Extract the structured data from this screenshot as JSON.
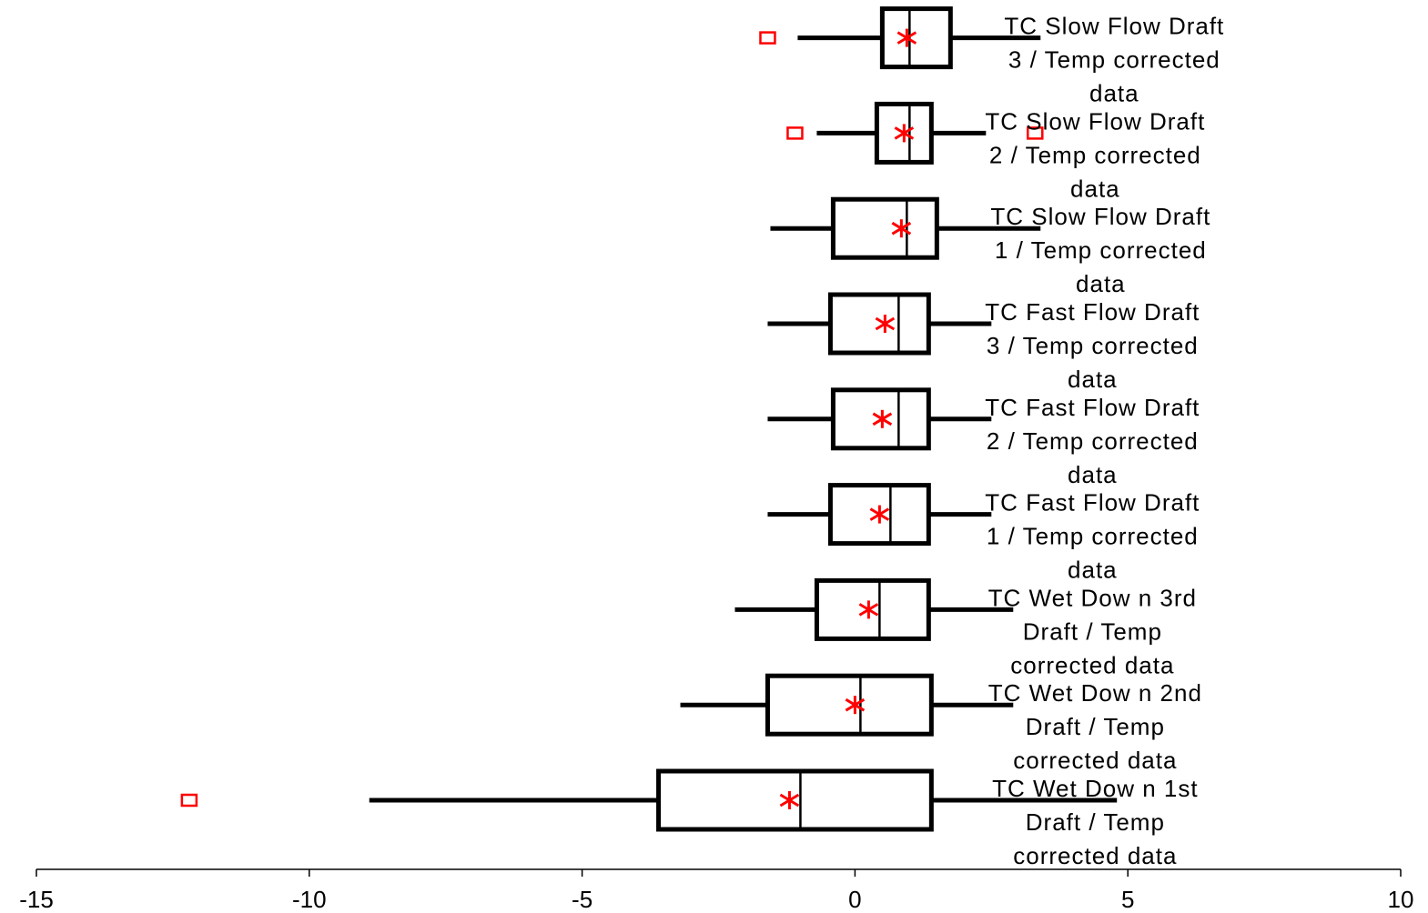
{
  "chart_data": {
    "type": "boxplot",
    "orientation": "horizontal",
    "title": "",
    "xlabel": "",
    "ylabel": "",
    "xlim": [
      -15,
      10
    ],
    "xticks": [
      -15,
      -10,
      -5,
      0,
      5,
      10
    ],
    "xtick_labels": [
      "-15",
      "-10",
      "-5",
      "0",
      "5",
      "10"
    ],
    "grid": false,
    "colors": {
      "box": "#000000",
      "mean": "#ff0000",
      "outlier": "#ff0000"
    },
    "categories": [
      {
        "label_lines": [
          "TC Wet Dow n 1st",
          "Draft / Temp",
          "corrected data"
        ],
        "whisker_low": -8.9,
        "q1": -3.6,
        "median": -1.0,
        "q3": 1.4,
        "whisker_high": 4.8,
        "mean": -1.2,
        "outliers": [
          -12.2
        ]
      },
      {
        "label_lines": [
          "TC Wet Dow n 2nd",
          "Draft / Temp",
          "corrected data"
        ],
        "whisker_low": -3.2,
        "q1": -1.6,
        "median": 0.1,
        "q3": 1.4,
        "whisker_high": 2.9,
        "mean": 0.0,
        "outliers": []
      },
      {
        "label_lines": [
          "TC Wet Dow n 3rd",
          "Draft / Temp",
          "corrected data"
        ],
        "whisker_low": -2.2,
        "q1": -0.7,
        "median": 0.45,
        "q3": 1.35,
        "whisker_high": 2.9,
        "mean": 0.25,
        "outliers": []
      },
      {
        "label_lines": [
          "TC Fast Flow  Draft",
          "1 / Temp corrected",
          "data"
        ],
        "whisker_low": -1.6,
        "q1": -0.45,
        "median": 0.65,
        "q3": 1.35,
        "whisker_high": 2.5,
        "mean": 0.45,
        "outliers": []
      },
      {
        "label_lines": [
          "TC Fast Flow  Draft",
          "2 / Temp corrected",
          "data"
        ],
        "whisker_low": -1.6,
        "q1": -0.4,
        "median": 0.8,
        "q3": 1.35,
        "whisker_high": 2.5,
        "mean": 0.5,
        "outliers": []
      },
      {
        "label_lines": [
          "TC Fast Flow  Draft",
          "3 / Temp corrected",
          "data"
        ],
        "whisker_low": -1.6,
        "q1": -0.45,
        "median": 0.8,
        "q3": 1.35,
        "whisker_high": 2.5,
        "mean": 0.55,
        "outliers": []
      },
      {
        "label_lines": [
          "TC Slow  Flow  Draft",
          "1 / Temp corrected",
          "data"
        ],
        "whisker_low": -1.55,
        "q1": -0.4,
        "median": 0.95,
        "q3": 1.5,
        "whisker_high": 3.4,
        "mean": 0.85,
        "outliers": []
      },
      {
        "label_lines": [
          "TC Slow  Flow  Draft",
          "2 / Temp corrected",
          "data"
        ],
        "whisker_low": -0.7,
        "q1": 0.4,
        "median": 1.0,
        "q3": 1.4,
        "whisker_high": 2.4,
        "mean": 0.9,
        "outliers": [
          -1.1,
          3.3
        ]
      },
      {
        "label_lines": [
          "TC Slow  Flow  Draft",
          "3 / Temp corrected",
          "data"
        ],
        "whisker_low": -1.05,
        "q1": 0.5,
        "median": 1.0,
        "q3": 1.75,
        "whisker_high": 3.4,
        "mean": 0.95,
        "outliers": [
          -1.6
        ]
      }
    ]
  }
}
